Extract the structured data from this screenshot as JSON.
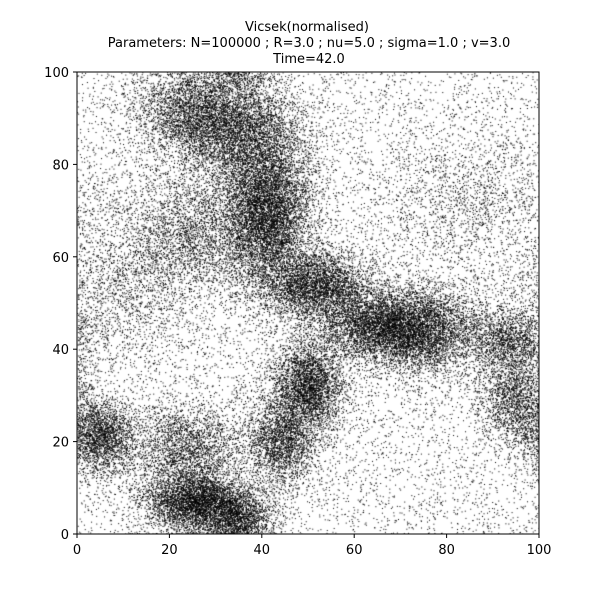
{
  "chart_data": {
    "type": "scatter",
    "title": "Vicsek(normalised)",
    "subtitle": "Parameters: N=100000 ; R=3.0 ; nu=5.0 ; sigma=1.0 ; v=3.0",
    "time_label": "Time=42.0",
    "xlabel": "",
    "ylabel": "",
    "xlim": [
      0,
      100
    ],
    "ylim": [
      0,
      100
    ],
    "x_ticks": [
      "0",
      "20",
      "40",
      "60",
      "80",
      "100"
    ],
    "y_ticks": [
      "0",
      "20",
      "40",
      "60",
      "80",
      "100"
    ],
    "grid": false,
    "point_color": "#000000",
    "n_particles": 100000,
    "density_clusters": [
      {
        "x": 41,
        "y": 70,
        "sx": 5,
        "sy": 9,
        "w": 0.13
      },
      {
        "x": 34,
        "y": 88,
        "sx": 7,
        "sy": 6,
        "w": 0.07
      },
      {
        "x": 24,
        "y": 92,
        "sx": 6,
        "sy": 5,
        "w": 0.04
      },
      {
        "x": 52,
        "y": 54,
        "sx": 6,
        "sy": 4,
        "w": 0.06
      },
      {
        "x": 66,
        "y": 45,
        "sx": 7,
        "sy": 4,
        "w": 0.08
      },
      {
        "x": 76,
        "y": 44,
        "sx": 6,
        "sy": 5,
        "w": 0.05
      },
      {
        "x": 50,
        "y": 32,
        "sx": 4,
        "sy": 5,
        "w": 0.06
      },
      {
        "x": 44,
        "y": 20,
        "sx": 4,
        "sy": 5,
        "w": 0.04
      },
      {
        "x": 26,
        "y": 7,
        "sx": 6,
        "sy": 3,
        "w": 0.07
      },
      {
        "x": 35,
        "y": 3,
        "sx": 4,
        "sy": 3,
        "w": 0.03
      },
      {
        "x": 24,
        "y": 18,
        "sx": 6,
        "sy": 5,
        "w": 0.04
      },
      {
        "x": 5,
        "y": 21,
        "sx": 4,
        "sy": 4,
        "w": 0.04
      },
      {
        "x": 95,
        "y": 29,
        "sx": 4,
        "sy": 5,
        "w": 0.03
      },
      {
        "x": 93,
        "y": 42,
        "sx": 5,
        "sy": 4,
        "w": 0.03
      },
      {
        "x": 25,
        "y": 65,
        "sx": 7,
        "sy": 7,
        "w": 0.04
      },
      {
        "x": 10,
        "y": 55,
        "sx": 8,
        "sy": 10,
        "w": 0.03
      },
      {
        "x": 85,
        "y": 72,
        "sx": 10,
        "sy": 8,
        "w": 0.02
      }
    ],
    "background_weight": 0.18
  }
}
